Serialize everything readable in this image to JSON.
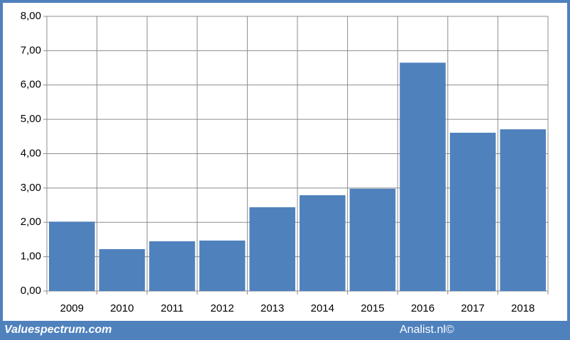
{
  "chart_data": {
    "type": "bar",
    "categories": [
      "2009",
      "2010",
      "2011",
      "2012",
      "2013",
      "2014",
      "2015",
      "2016",
      "2017",
      "2018"
    ],
    "values": [
      2.02,
      1.22,
      1.45,
      1.47,
      2.44,
      2.79,
      2.98,
      6.65,
      4.61,
      4.71
    ],
    "color": "#4f81bd",
    "ylim": [
      0,
      8
    ],
    "yticks": [
      {
        "value": 0,
        "label": "0,00"
      },
      {
        "value": 1,
        "label": "1,00"
      },
      {
        "value": 2,
        "label": "2,00"
      },
      {
        "value": 3,
        "label": "3,00"
      },
      {
        "value": 4,
        "label": "4,00"
      },
      {
        "value": 5,
        "label": "5,00"
      },
      {
        "value": 6,
        "label": "6,00"
      },
      {
        "value": 7,
        "label": "7,00"
      },
      {
        "value": 8,
        "label": "8,00"
      }
    ],
    "grid": true
  },
  "footer": {
    "left": "Valuespectrum.com",
    "right": "Analist.nl©"
  }
}
